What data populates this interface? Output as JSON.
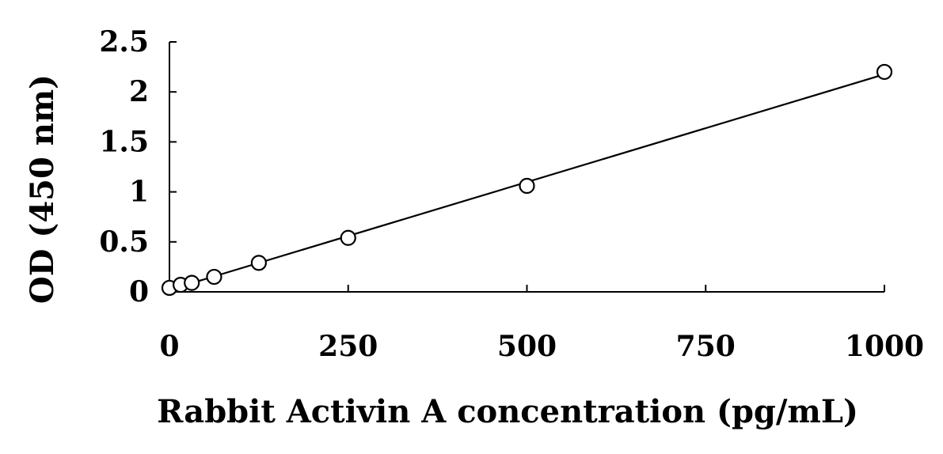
{
  "chart_data": {
    "type": "scatter",
    "xlabel": "Rabbit Activin A concentration (pg/mL)",
    "ylabel": "OD (450 nm)",
    "xlim": [
      0,
      1000
    ],
    "ylim": [
      0,
      2.5
    ],
    "xticks": [
      "0",
      "250",
      "500",
      "750",
      "1000"
    ],
    "yticks": [
      "0",
      "0.5",
      "1",
      "1.5",
      "2",
      "2.5"
    ],
    "grid": false,
    "legend": "none",
    "series": [
      {
        "x": [
          0,
          15.6,
          31.25,
          62.5,
          125,
          250,
          500,
          1000
        ],
        "y": [
          0.04,
          0.07,
          0.09,
          0.15,
          0.29,
          0.54,
          1.06,
          2.2
        ],
        "marker": "open-circle",
        "trendline": "linear"
      }
    ],
    "colors": {
      "line": "#000000",
      "marker_fill": "#ffffff"
    }
  }
}
